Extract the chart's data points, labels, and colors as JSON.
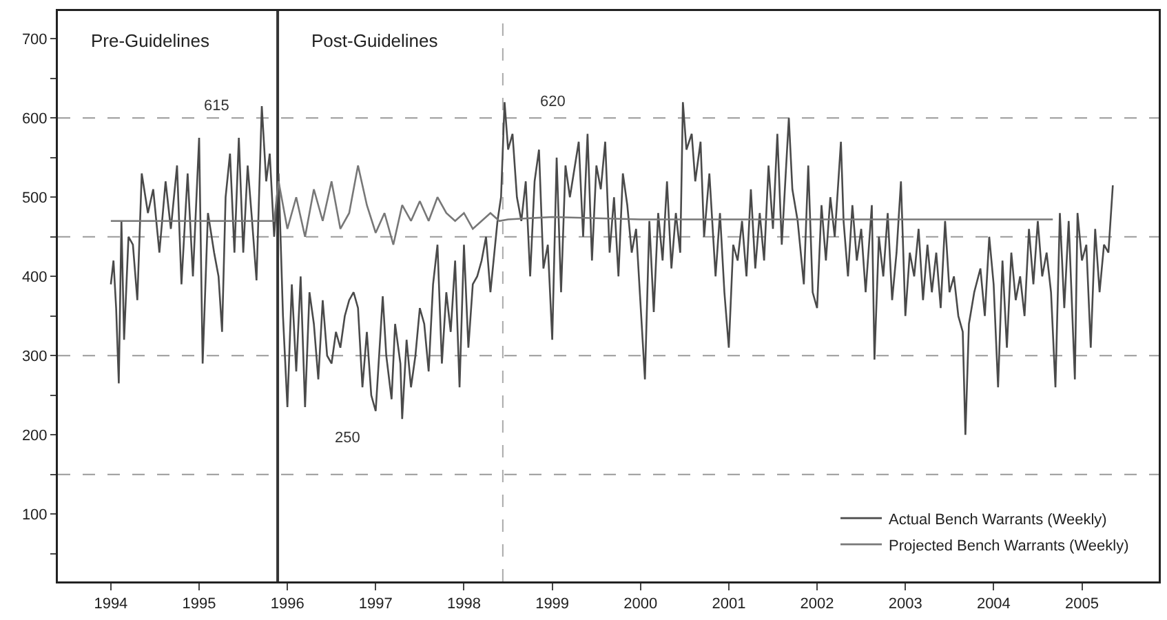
{
  "chart_data": {
    "type": "line",
    "legend": "bottom right",
    "grid": false,
    "marker": "none",
    "line_style": "solid",
    "xlim": [
      1993.4,
      2005.87
    ],
    "xticks": [
      1994,
      1995,
      1996,
      1997,
      1998,
      1999,
      2000,
      2001,
      2002,
      2003,
      2004,
      2005
    ],
    "ylim": [
      15,
      735
    ],
    "yticks": [
      {
        "value": 50,
        "label": null
      },
      100,
      {
        "value": 150,
        "label": null
      },
      200,
      {
        "value": 250,
        "label": null
      },
      300,
      {
        "value": 350,
        "label": null
      },
      400,
      {
        "value": 450,
        "label": null
      },
      500,
      {
        "value": 550,
        "label": null
      },
      600,
      {
        "value": 650,
        "label": null
      },
      700
    ],
    "annotations": [
      "Pre-Guidelines",
      "Post-Guidelines",
      {
        "text": "615",
        "x": 1995.71,
        "y": 615
      },
      {
        "text": "620",
        "x": 1998.46,
        "y": 620
      },
      {
        "text": "250",
        "x": 1996.2,
        "y": 235
      }
    ],
    "ref_lines": [
      {
        "axis": "y",
        "value": 150,
        "color": "#999999",
        "line_style": "dashed"
      },
      {
        "axis": "y",
        "value": 300,
        "color": "#999999",
        "line_style": "dashed"
      },
      {
        "axis": "y",
        "value": 450,
        "color": "#999999",
        "line_style": "dashed"
      },
      {
        "axis": "y",
        "value": 600,
        "color": "#999999",
        "line_style": "dashed"
      },
      {
        "axis": "x",
        "value": 1995.89,
        "color": "#333333",
        "line_style": "solid"
      },
      {
        "axis": "x",
        "value": 1998.44,
        "color": "#aaaaaa",
        "line_style": "dashed"
      }
    ],
    "series": [
      {
        "name": "Actual Bench Warrants (Weekly)",
        "color": "#4a4a4a",
        "x": [
          1994.0,
          1994.03,
          1994.06,
          1994.09,
          1994.12,
          1994.15,
          1994.2,
          1994.25,
          1994.3,
          1994.35,
          1994.42,
          1994.48,
          1994.55,
          1994.62,
          1994.68,
          1994.75,
          1994.8,
          1994.87,
          1994.93,
          1995.0,
          1995.04,
          1995.1,
          1995.17,
          1995.22,
          1995.26,
          1995.3,
          1995.35,
          1995.4,
          1995.45,
          1995.5,
          1995.55,
          1995.6,
          1995.65,
          1995.71,
          1995.76,
          1995.8,
          1995.85,
          1995.9,
          1995.95,
          1996.0,
          1996.05,
          1996.1,
          1996.15,
          1996.2,
          1996.25,
          1996.3,
          1996.35,
          1996.4,
          1996.45,
          1996.5,
          1996.55,
          1996.6,
          1996.65,
          1996.7,
          1996.75,
          1996.8,
          1996.85,
          1996.9,
          1996.95,
          1997.0,
          1997.05,
          1997.08,
          1997.12,
          1997.18,
          1997.22,
          1997.28,
          1997.3,
          1997.35,
          1997.4,
          1997.45,
          1997.5,
          1997.55,
          1997.6,
          1997.65,
          1997.7,
          1997.75,
          1997.8,
          1997.85,
          1997.9,
          1997.95,
          1998.0,
          1998.05,
          1998.1,
          1998.15,
          1998.2,
          1998.25,
          1998.3,
          1998.38,
          1998.42,
          1998.46,
          1998.5,
          1998.55,
          1998.6,
          1998.65,
          1998.7,
          1998.75,
          1998.8,
          1998.85,
          1998.9,
          1998.95,
          1999.0,
          1999.05,
          1999.1,
          1999.15,
          1999.2,
          1999.3,
          1999.35,
          1999.4,
          1999.45,
          1999.5,
          1999.55,
          1999.6,
          1999.65,
          1999.7,
          1999.75,
          1999.8,
          1999.85,
          1999.9,
          1999.95,
          2000.05,
          2000.1,
          2000.15,
          2000.2,
          2000.25,
          2000.3,
          2000.35,
          2000.4,
          2000.45,
          2000.48,
          2000.52,
          2000.58,
          2000.62,
          2000.68,
          2000.72,
          2000.78,
          2000.85,
          2000.9,
          2000.95,
          2001.0,
          2001.05,
          2001.1,
          2001.15,
          2001.2,
          2001.25,
          2001.3,
          2001.35,
          2001.4,
          2001.45,
          2001.5,
          2001.55,
          2001.6,
          2001.68,
          2001.72,
          2001.78,
          2001.85,
          2001.9,
          2001.95,
          2002.0,
          2002.05,
          2002.1,
          2002.15,
          2002.2,
          2002.27,
          2002.3,
          2002.35,
          2002.4,
          2002.45,
          2002.5,
          2002.55,
          2002.62,
          2002.65,
          2002.7,
          2002.75,
          2002.8,
          2002.85,
          2002.9,
          2002.95,
          2003.0,
          2003.05,
          2003.1,
          2003.15,
          2003.2,
          2003.25,
          2003.3,
          2003.35,
          2003.4,
          2003.45,
          2003.5,
          2003.55,
          2003.6,
          2003.65,
          2003.68,
          2003.72,
          2003.78,
          2003.85,
          2003.9,
          2003.95,
          2004.0,
          2004.05,
          2004.1,
          2004.15,
          2004.2,
          2004.25,
          2004.3,
          2004.35,
          2004.4,
          2004.45,
          2004.5,
          2004.55,
          2004.6,
          2004.65,
          2004.7,
          2004.75,
          2004.8,
          2004.85,
          2004.92,
          2004.95,
          2005.0,
          2005.05,
          2005.1,
          2005.15,
          2005.2,
          2005.25,
          2005.3,
          2005.35
        ],
        "values": [
          390,
          420,
          360,
          265,
          470,
          320,
          450,
          440,
          370,
          530,
          480,
          510,
          430,
          520,
          460,
          540,
          390,
          530,
          400,
          575,
          290,
          480,
          430,
          400,
          330,
          500,
          555,
          430,
          575,
          430,
          540,
          470,
          395,
          615,
          520,
          555,
          450,
          530,
          350,
          235,
          390,
          280,
          400,
          235,
          380,
          340,
          270,
          370,
          300,
          290,
          330,
          310,
          350,
          370,
          380,
          360,
          260,
          330,
          250,
          230,
          320,
          375,
          300,
          245,
          340,
          290,
          220,
          320,
          260,
          300,
          360,
          340,
          280,
          390,
          440,
          290,
          380,
          330,
          420,
          260,
          440,
          310,
          390,
          400,
          420,
          450,
          380,
          470,
          500,
          620,
          560,
          580,
          500,
          470,
          520,
          400,
          520,
          560,
          410,
          440,
          320,
          550,
          380,
          540,
          500,
          570,
          450,
          580,
          420,
          540,
          510,
          570,
          430,
          500,
          400,
          530,
          490,
          430,
          460,
          270,
          470,
          355,
          480,
          420,
          520,
          410,
          480,
          430,
          620,
          560,
          580,
          520,
          570,
          450,
          530,
          400,
          480,
          380,
          310,
          440,
          420,
          470,
          400,
          510,
          410,
          480,
          420,
          540,
          460,
          580,
          440,
          600,
          510,
          470,
          390,
          540,
          380,
          360,
          490,
          420,
          500,
          450,
          570,
          470,
          400,
          490,
          420,
          460,
          380,
          490,
          295,
          450,
          400,
          480,
          370,
          430,
          520,
          350,
          430,
          400,
          460,
          370,
          440,
          380,
          430,
          360,
          470,
          380,
          400,
          350,
          330,
          200,
          340,
          380,
          410,
          350,
          450,
          390,
          260,
          420,
          310,
          430,
          370,
          400,
          350,
          460,
          390,
          470,
          400,
          430,
          380,
          260,
          480,
          360,
          470,
          270,
          480,
          420,
          440,
          310,
          460,
          380,
          440,
          430,
          515
        ]
      },
      {
        "name": "Projected Bench Warrants (Weekly)",
        "color": "#777777",
        "x": [
          1994.0,
          1995.85,
          1995.9,
          1996.0,
          1996.1,
          1996.2,
          1996.3,
          1996.4,
          1996.5,
          1996.6,
          1996.7,
          1996.8,
          1996.9,
          1997.0,
          1997.1,
          1997.2,
          1997.3,
          1997.4,
          1997.5,
          1997.6,
          1997.7,
          1997.8,
          1997.9,
          1998.0,
          1998.1,
          1998.2,
          1998.3,
          1998.4,
          1998.5,
          1999.0,
          2000.0,
          2001.0,
          2004.67
        ],
        "values": [
          470,
          470,
          520,
          460,
          500,
          450,
          510,
          470,
          520,
          460,
          480,
          540,
          490,
          455,
          480,
          440,
          490,
          470,
          495,
          470,
          500,
          480,
          470,
          480,
          460,
          470,
          480,
          470,
          472,
          475,
          472,
          472,
          472
        ]
      }
    ]
  }
}
